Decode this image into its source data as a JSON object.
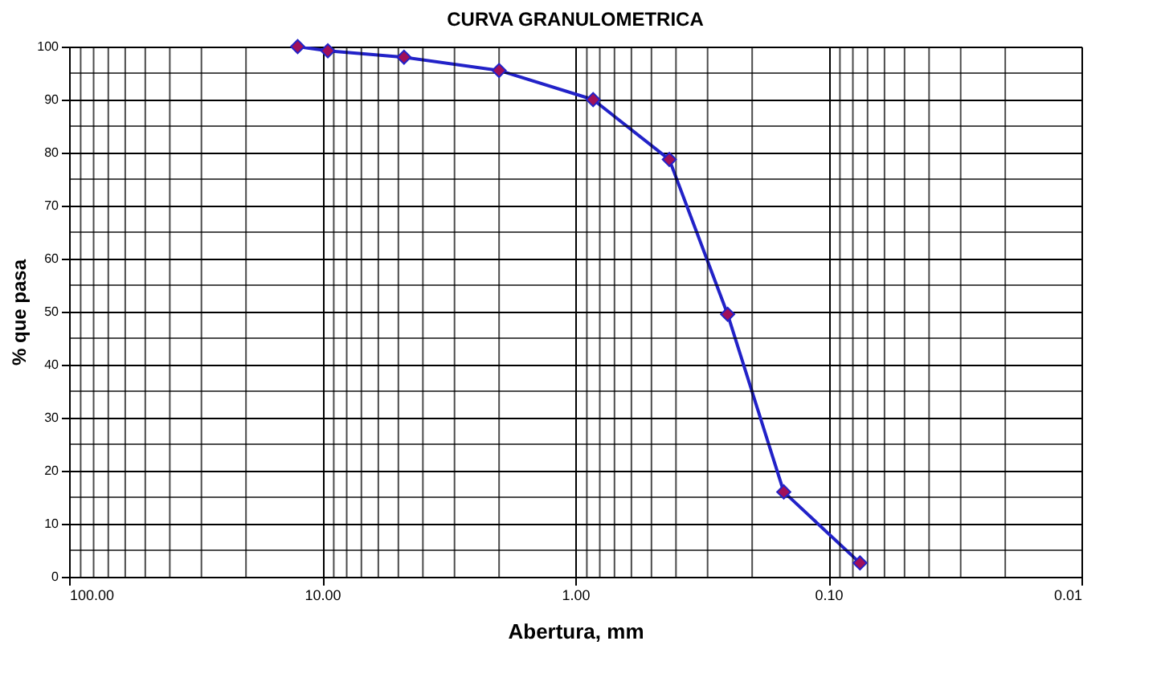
{
  "chart_data": {
    "type": "line",
    "title": "CURVA GRANULOMETRICA",
    "xlabel": "Abertura, mm",
    "ylabel": "% que pasa",
    "x": [
      12.5,
      9.5,
      4.75,
      2.0,
      0.85,
      0.425,
      0.25,
      0.15,
      0.075
    ],
    "series": [
      {
        "color": "#2222c8",
        "colors": [
          "#a0105a",
          "#a0105a",
          "#a0105a",
          "#a0105a",
          "#a0105a",
          "#a0105a",
          "#a0105a",
          "#a0105a",
          "#a0105a"
        ],
        "values": [
          100,
          99.2,
          98,
          95.5,
          90,
          78.7,
          49.5,
          16,
          2.6
        ]
      }
    ],
    "log": "x",
    "xlim": [
      100,
      0.01
    ],
    "xticks": [
      {
        "value": 100,
        "label": "100.00"
      },
      {
        "value": 10,
        "label": "10.00"
      },
      {
        "value": 1,
        "label": "1.00"
      },
      {
        "value": 0.1,
        "label": "0.10"
      },
      {
        "value": 0.01,
        "label": "0.01"
      }
    ],
    "ylim": [
      0,
      100
    ],
    "yticks": [
      0,
      10,
      20,
      30,
      40,
      50,
      60,
      70,
      80,
      90,
      100
    ],
    "grid": true,
    "marker": "diamond",
    "line_style": "solid"
  }
}
